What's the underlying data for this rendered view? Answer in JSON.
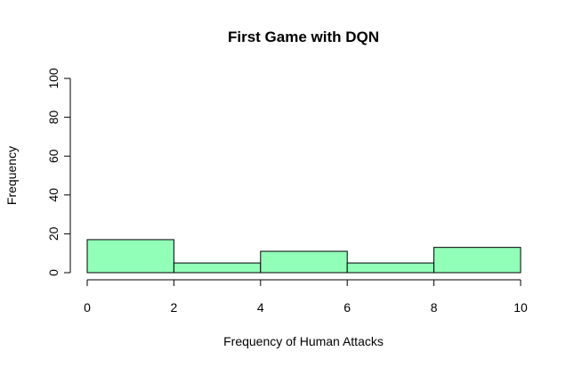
{
  "chart_data": {
    "type": "bar",
    "title": "First Game with DQN",
    "xlabel": "Frequency of Human Attacks",
    "ylabel": "Frequency",
    "bins": [
      [
        0,
        2
      ],
      [
        2,
        4
      ],
      [
        4,
        6
      ],
      [
        6,
        8
      ],
      [
        8,
        10
      ]
    ],
    "values": [
      17,
      5,
      11,
      5,
      13
    ],
    "xlim": [
      0,
      10
    ],
    "ylim": [
      0,
      100
    ],
    "xticks": [
      0,
      2,
      4,
      6,
      8,
      10
    ],
    "yticks": [
      0,
      20,
      40,
      60,
      80,
      100
    ],
    "bar_color": "#91ffb8",
    "bar_edge_color": "#000000",
    "grid": false,
    "legend": "none"
  }
}
